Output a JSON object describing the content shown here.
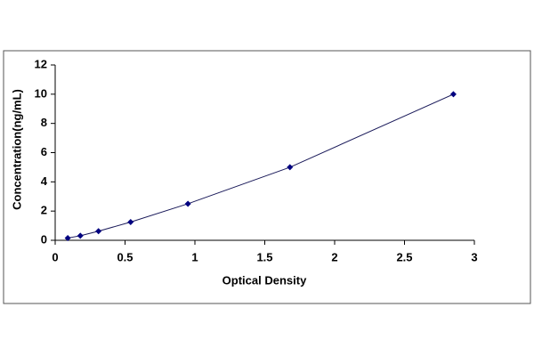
{
  "chart_data": {
    "type": "scatter",
    "x_label": "Optical Density",
    "y_label": "Concentration(ng/mL)",
    "x": [
      0.09,
      0.18,
      0.31,
      0.54,
      0.95,
      1.68,
      2.85
    ],
    "values": [
      0.156,
      0.312,
      0.625,
      1.25,
      2.5,
      5,
      10
    ],
    "color": "#000080",
    "line_color": "#1a1a5a",
    "connect": true,
    "xlim": [
      0,
      3
    ],
    "xticks": [
      0,
      0.5,
      1,
      1.5,
      2,
      2.5,
      3
    ],
    "ylim": [
      0,
      12
    ],
    "yticks": [
      0,
      2,
      4,
      6,
      8,
      10,
      12
    ],
    "grid": false
  }
}
